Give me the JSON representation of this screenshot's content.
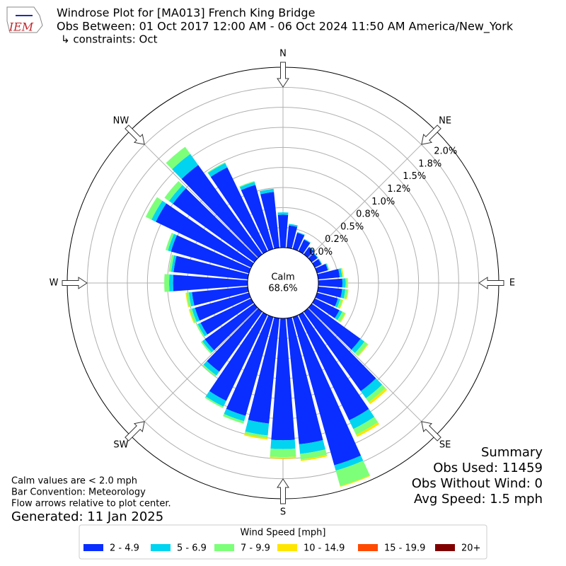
{
  "chart_data": {
    "type": "windrose",
    "title": "Windrose Plot for [MA013] French King Bridge",
    "subtitle": "Obs Between: 01 Oct 2017 12:00 AM - 06 Oct 2024 11:50 AM America/New_York",
    "constraints": "↳ constraints: Oct",
    "logo_text": "IEM",
    "direction_labels": [
      "N",
      "NE",
      "E",
      "SE",
      "S",
      "SW",
      "W",
      "NW"
    ],
    "calm_label": "Calm",
    "calm_value": 68.6,
    "calm_value_label": "68.6%",
    "ylim": [
      0,
      2.25
    ],
    "yticks": [
      {
        "value": 0,
        "label": "0.0%"
      },
      {
        "value": 0.25,
        "label": "0.2%"
      },
      {
        "value": 0.5,
        "label": "0.5%"
      },
      {
        "value": 0.75,
        "label": "0.8%"
      },
      {
        "value": 1.0,
        "label": "1.0%"
      },
      {
        "value": 1.25,
        "label": "1.2%"
      },
      {
        "value": 1.5,
        "label": "1.5%"
      },
      {
        "value": 1.75,
        "label": "1.8%"
      },
      {
        "value": 2.0,
        "label": "2.0%"
      }
    ],
    "grid": true,
    "x": [
      0,
      10,
      20,
      30,
      40,
      50,
      60,
      70,
      80,
      90,
      100,
      110,
      120,
      130,
      140,
      150,
      160,
      170,
      180,
      190,
      200,
      210,
      220,
      230,
      240,
      250,
      260,
      270,
      280,
      290,
      300,
      310,
      320,
      330,
      340,
      350
    ],
    "legend_title": "Wind Speed [mph]",
    "series": [
      {
        "name": "2 - 4.9",
        "color": "#0a2eff",
        "values": [
          0.41,
          0.28,
          0.21,
          0.16,
          0.11,
          0.09,
          0.09,
          0.14,
          0.27,
          0.3,
          0.3,
          0.27,
          0.34,
          0.75,
          1.22,
          1.46,
          1.92,
          1.58,
          1.52,
          1.32,
          1.28,
          1.19,
          0.92,
          0.76,
          0.7,
          0.7,
          0.7,
          0.93,
          0.93,
          1.01,
          1.32,
          1.25,
          1.37,
          1.16,
          0.83,
          0.7
        ]
      },
      {
        "name": "5 - 6.9",
        "color": "#00d4f0",
        "values": [
          0.03,
          0.02,
          0.01,
          0.01,
          0.01,
          0.01,
          0.01,
          0.01,
          0.03,
          0.04,
          0.04,
          0.03,
          0.04,
          0.06,
          0.11,
          0.12,
          0.07,
          0.12,
          0.11,
          0.15,
          0.07,
          0.08,
          0.06,
          0.04,
          0.04,
          0.04,
          0.04,
          0.05,
          0.03,
          0.04,
          0.06,
          0.06,
          0.17,
          0.06,
          0.04,
          0.04
        ]
      },
      {
        "name": "7 - 9.9",
        "color": "#7dff7a",
        "values": [
          0,
          0,
          0,
          0,
          0,
          0,
          0,
          0.01,
          0.01,
          0.02,
          0.03,
          0.03,
          0.04,
          0.05,
          0.06,
          0.08,
          0.2,
          0.07,
          0.1,
          0.03,
          0.03,
          0.02,
          0.02,
          0.02,
          0.02,
          0.03,
          0.03,
          0.06,
          0.03,
          0.03,
          0.08,
          0.07,
          0.11,
          0.01,
          0.01,
          0
        ]
      },
      {
        "name": "10 - 14.9",
        "color": "#ffe600",
        "values": [
          0,
          0,
          0,
          0,
          0,
          0,
          0,
          0,
          0.01,
          0.01,
          0.01,
          0.01,
          0.01,
          0.01,
          0.03,
          0.03,
          0.01,
          0.02,
          0.02,
          0.02,
          0,
          0,
          0,
          0,
          0,
          0.01,
          0.01,
          0,
          0,
          0,
          0,
          0,
          0,
          0,
          0,
          0
        ]
      },
      {
        "name": "15 - 19.9",
        "color": "#ff4a00",
        "values": [
          0,
          0,
          0,
          0,
          0,
          0,
          0,
          0,
          0,
          0,
          0,
          0,
          0,
          0,
          0,
          0,
          0,
          0,
          0,
          0,
          0,
          0,
          0,
          0,
          0,
          0,
          0,
          0,
          0,
          0,
          0,
          0,
          0,
          0,
          0,
          0
        ]
      },
      {
        "name": "20+",
        "color": "#800000",
        "values": [
          0,
          0,
          0,
          0,
          0,
          0,
          0,
          0,
          0,
          0,
          0,
          0,
          0,
          0,
          0,
          0,
          0,
          0,
          0,
          0,
          0,
          0,
          0,
          0,
          0,
          0,
          0,
          0,
          0,
          0,
          0,
          0,
          0,
          0,
          0,
          0
        ]
      }
    ],
    "notes": [
      "Calm values are < 2.0 mph",
      "Bar Convention: Meteorology",
      "Flow arrows relative to plot center."
    ],
    "generated": "Generated: 11 Jan 2025",
    "summary": [
      "Summary",
      "Obs Used: 11459",
      "Obs Without Wind: 0",
      "Avg Speed: 1.5 mph"
    ]
  }
}
